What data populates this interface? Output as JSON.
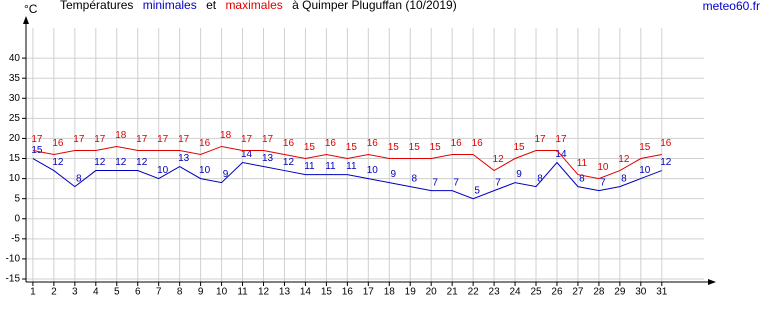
{
  "chart_data": {
    "type": "line",
    "title_parts": [
      "Températures",
      "minimales",
      "et",
      "maximales",
      "à Quimper Pluguffan (10/2019)"
    ],
    "y_unit": "°C",
    "source": "meteo60.fr",
    "x": [
      1,
      2,
      3,
      4,
      5,
      6,
      7,
      8,
      9,
      10,
      11,
      12,
      13,
      14,
      15,
      16,
      17,
      18,
      19,
      20,
      21,
      22,
      23,
      24,
      25,
      26,
      27,
      28,
      29,
      30,
      31
    ],
    "xlim": [
      0.67,
      33.3
    ],
    "xticks": [
      1,
      2,
      3,
      4,
      5,
      6,
      7,
      8,
      9,
      10,
      11,
      12,
      13,
      14,
      15,
      16,
      17,
      18,
      19,
      20,
      21,
      22,
      23,
      24,
      25,
      26,
      27,
      28,
      29,
      30,
      31
    ],
    "ylim": [
      -15.75,
      47.5
    ],
    "yticks": [
      -15,
      -10,
      -5,
      0,
      5,
      10,
      15,
      20,
      25,
      30,
      35,
      40
    ],
    "grid": true,
    "series": [
      {
        "name": "minimales",
        "color": "#0000c0",
        "values": [
          15,
          12,
          8,
          12,
          12,
          12,
          10,
          13,
          10,
          9,
          14,
          13,
          12,
          11,
          11,
          11,
          10,
          9,
          8,
          7,
          7,
          5,
          7,
          9,
          8,
          14,
          8,
          7,
          8,
          10,
          12
        ]
      },
      {
        "name": "maximales",
        "color": "#e00000",
        "values": [
          17,
          16,
          17,
          17,
          18,
          17,
          17,
          17,
          16,
          18,
          17,
          17,
          16,
          15,
          16,
          15,
          16,
          15,
          15,
          15,
          16,
          16,
          12,
          15,
          17,
          17,
          11,
          10,
          12,
          15,
          16
        ]
      }
    ]
  }
}
